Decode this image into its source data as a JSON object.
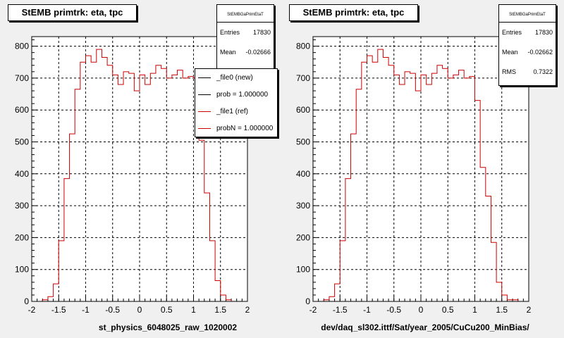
{
  "chart_data": [
    {
      "type": "histogram",
      "title": "StEMB primtrk: eta, tpc",
      "xlabel": "st_physics_6048025_raw_1020002",
      "xlim": [
        -2,
        2
      ],
      "ylim": [
        0,
        830
      ],
      "x_ticks": [
        -2,
        -1.5,
        -1,
        -0.5,
        0,
        0.5,
        1,
        1.5,
        2
      ],
      "x_tick_labels": [
        "-2",
        "-1.5",
        "-1",
        "-0.5",
        "0",
        "0.5",
        "1",
        "1.5",
        "2"
      ],
      "y_ticks": [
        0,
        100,
        200,
        300,
        400,
        500,
        600,
        700,
        800
      ],
      "y_tick_labels": [
        "0",
        "100",
        "200",
        "300",
        "400",
        "500",
        "600",
        "700",
        "800"
      ],
      "grid": true,
      "bin_edges_range": [
        -2,
        2
      ],
      "series": [
        {
          "color": "#cc0000",
          "values": [
            0,
            0,
            5,
            15,
            55,
            190,
            385,
            525,
            665,
            750,
            770,
            750,
            790,
            765,
            740,
            710,
            680,
            720,
            715,
            660,
            710,
            680,
            715,
            740,
            730,
            700,
            710,
            725,
            700,
            705,
            700,
            505,
            340,
            190,
            65,
            20,
            5,
            0,
            0,
            0
          ]
        }
      ],
      "stats": {
        "name": "StEMBGaPrimEtaT",
        "rows": [
          {
            "label": "Entries",
            "value": "17830"
          },
          {
            "label": "Mean",
            "value": "-0.02666"
          }
        ]
      },
      "legend": {
        "position": "top-right",
        "entries": [
          {
            "label": "_file0 (new)",
            "color": "#000000"
          },
          {
            "label": "prob = 1.000000",
            "color": "#000000"
          },
          {
            "label": "_file1 (ref)",
            "color": "#cc0000"
          },
          {
            "label": "probN = 1.000000",
            "color": "#cc0000"
          }
        ]
      }
    },
    {
      "type": "histogram",
      "title": "StEMB primtrk: eta, tpc",
      "xlabel": "dev/daq_sl302.ittf/Sat/year_2005/CuCu200_MinBias/",
      "xlim": [
        -2,
        2
      ],
      "ylim": [
        0,
        830
      ],
      "x_ticks": [
        -2,
        -1.5,
        -1,
        -0.5,
        0,
        0.5,
        1,
        1.5,
        2
      ],
      "x_tick_labels": [
        "-2",
        "-1.5",
        "-1",
        "-0.5",
        "0",
        "0.5",
        "1",
        "1.5",
        "2"
      ],
      "y_ticks": [
        0,
        100,
        200,
        300,
        400,
        500,
        600,
        700,
        800
      ],
      "y_tick_labels": [
        "0",
        "100",
        "200",
        "300",
        "400",
        "500",
        "600",
        "700",
        "800"
      ],
      "grid": true,
      "bin_edges_range": [
        -2,
        2
      ],
      "series": [
        {
          "color": "#cc0000",
          "values": [
            0,
            0,
            5,
            15,
            55,
            190,
            385,
            525,
            665,
            750,
            770,
            750,
            790,
            765,
            740,
            710,
            680,
            720,
            715,
            660,
            710,
            680,
            715,
            740,
            730,
            700,
            710,
            725,
            700,
            705,
            630,
            420,
            330,
            185,
            60,
            20,
            5,
            5,
            0,
            0
          ]
        }
      ],
      "stats": {
        "name": "StEMBGaPrimEtaT",
        "rows": [
          {
            "label": "Entries",
            "value": "17830"
          },
          {
            "label": "Mean",
            "value": "-0.02662"
          },
          {
            "label": "RMS",
            "value": "0.7322"
          }
        ]
      }
    }
  ]
}
